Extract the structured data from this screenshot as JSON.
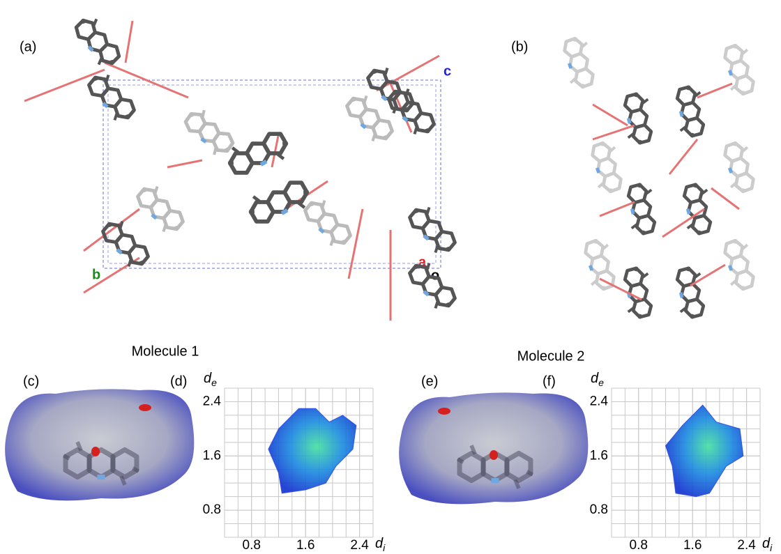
{
  "panel_a": {
    "label": "(a)",
    "axis_b": "b",
    "axis_c": "c",
    "axis_a": "a",
    "axis_o": "o"
  },
  "panel_b": {
    "label": "(b)"
  },
  "molecules": [
    {
      "title": "Molecule 1",
      "surface_label": "(c)",
      "plot_label": "(d)"
    },
    {
      "title": "Molecule 2",
      "surface_label": "(e)",
      "plot_label": "(f)"
    }
  ],
  "plot": {
    "y_label": "d",
    "y_sub": "e",
    "x_label": "d",
    "x_sub": "i",
    "xlim": [
      0.4,
      2.6
    ],
    "ylim": [
      0.4,
      2.6
    ],
    "xticks": [
      0.8,
      1.6,
      2.4
    ],
    "yticks": [
      0.8,
      1.6,
      2.4
    ]
  }
}
